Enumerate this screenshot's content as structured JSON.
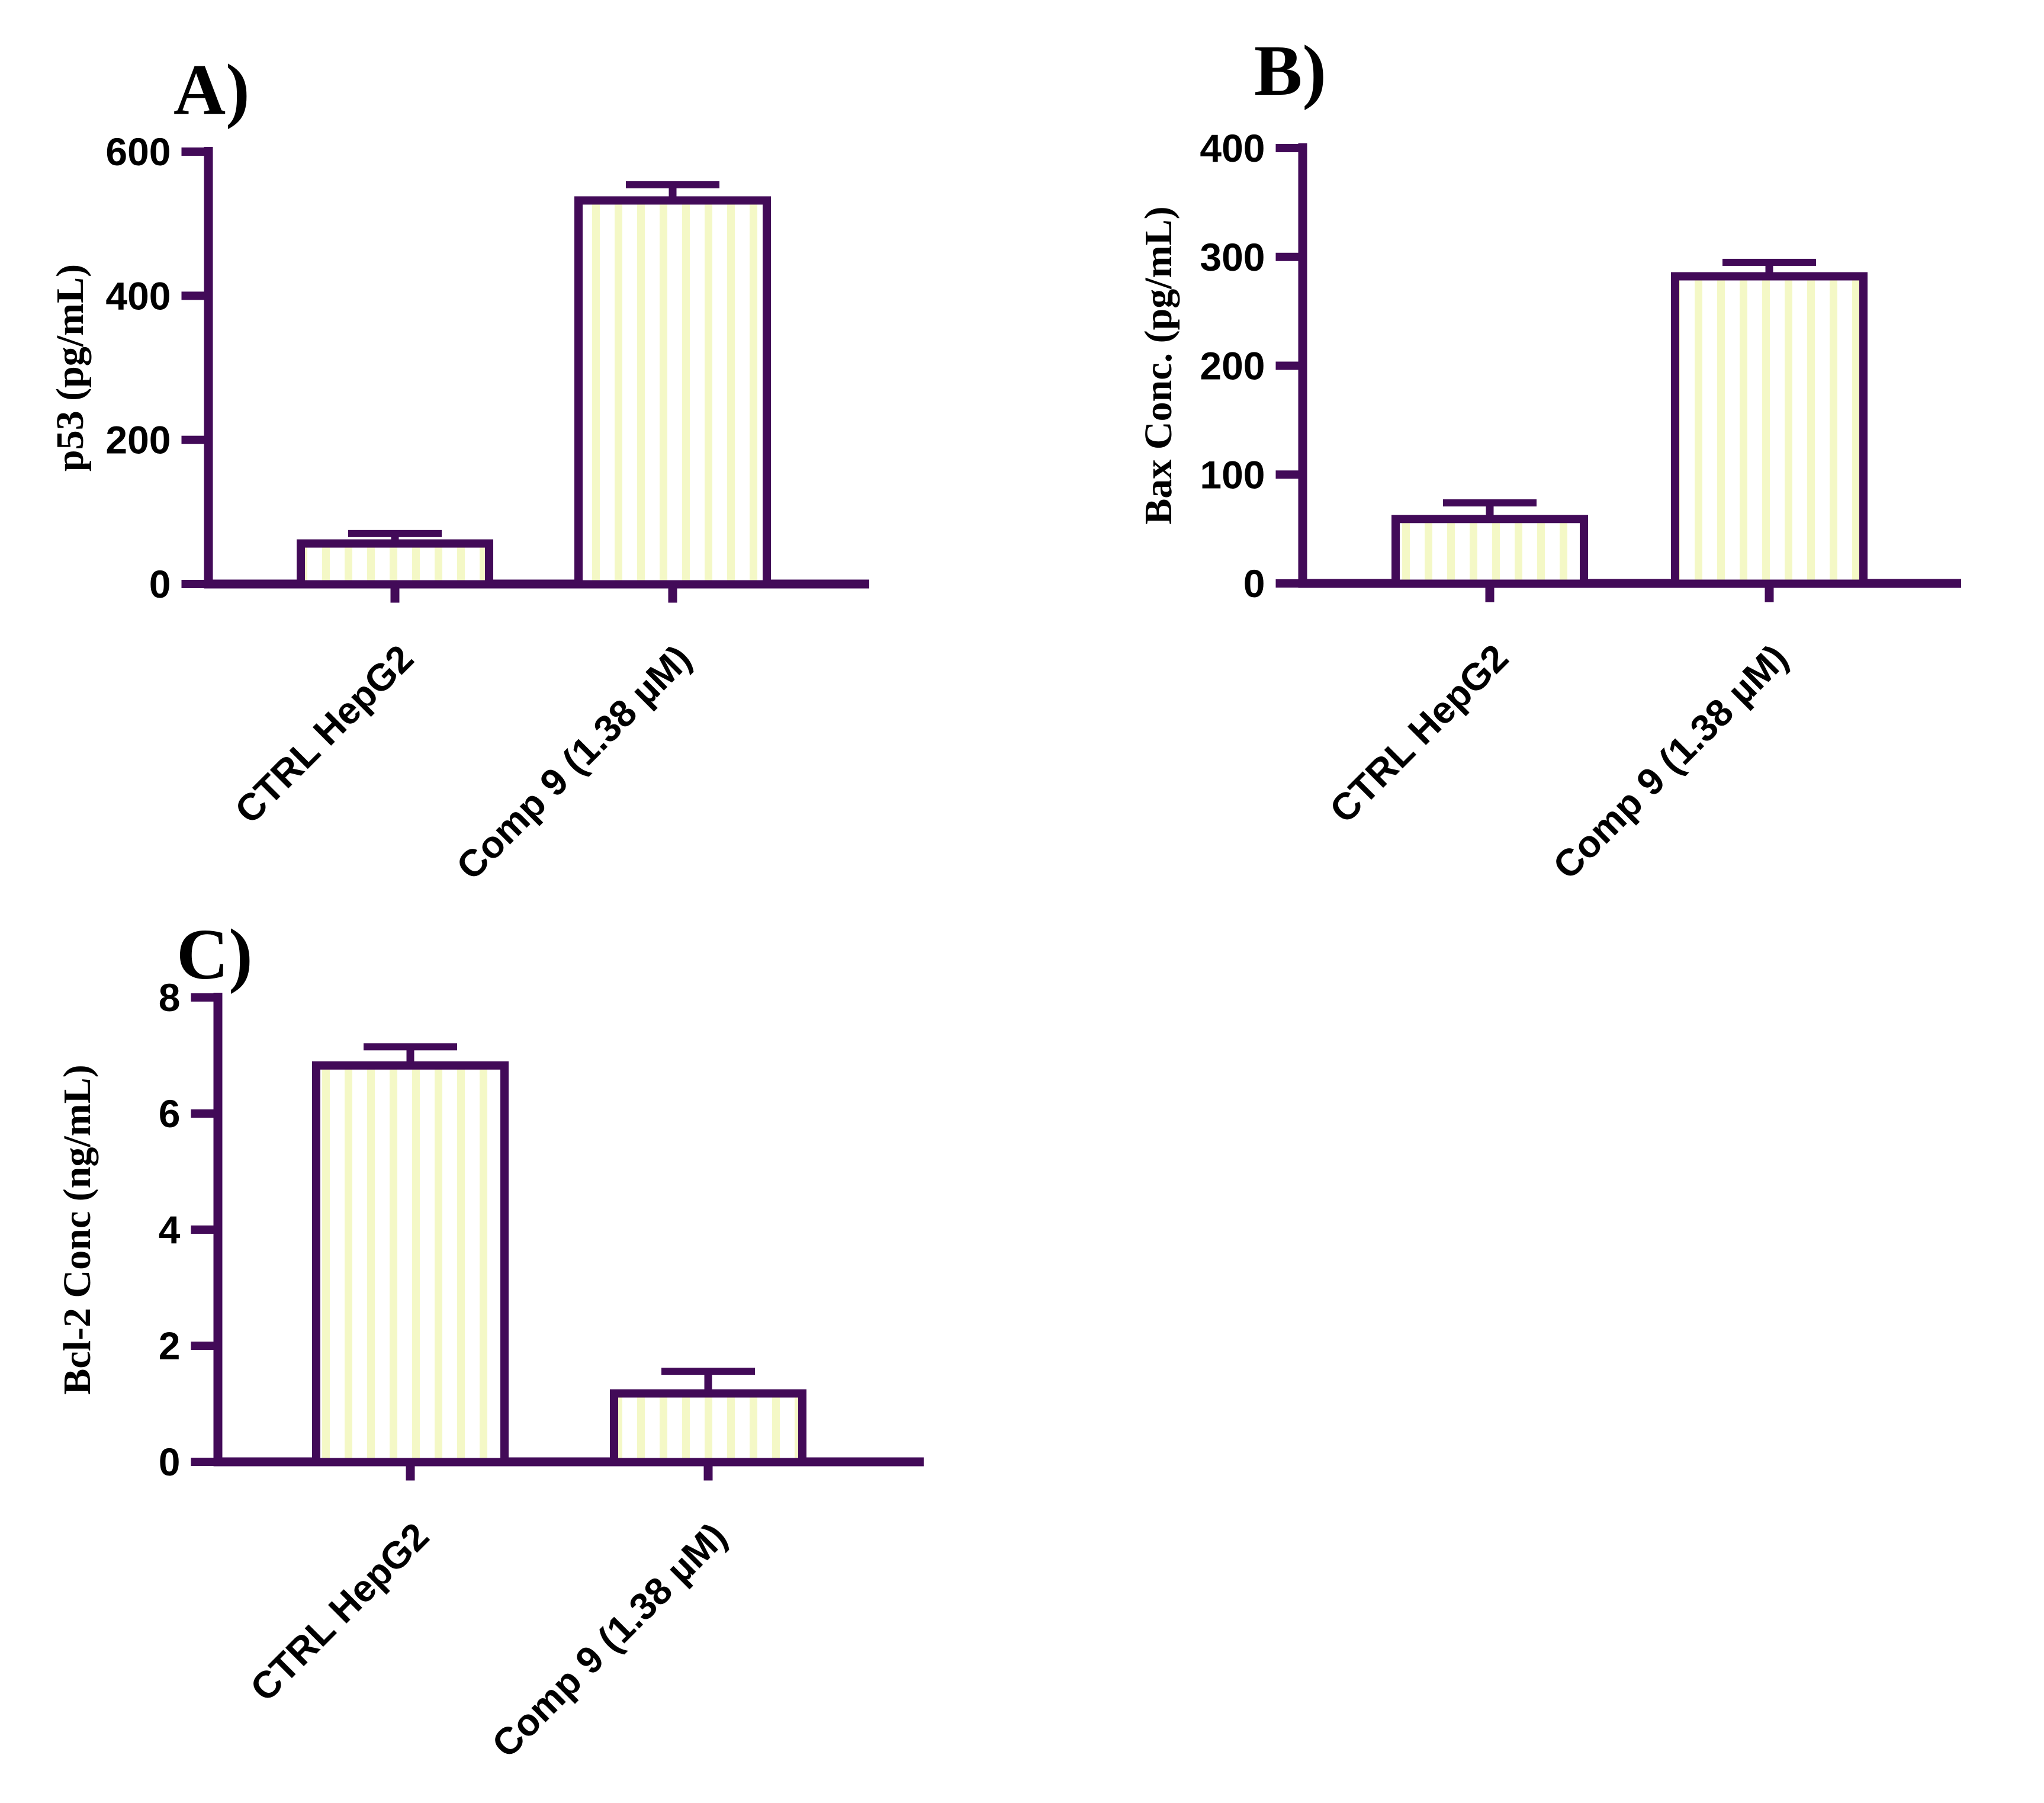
{
  "figure": {
    "background": "#ffffff",
    "description": "Three-panel bar figure (ELISA concentrations) comparing control HepG2 cells vs Compound 9 treatment"
  },
  "colors": {
    "axis": "#420A58",
    "bar_border": "#420A58",
    "error_bar": "#420A58",
    "bar_background": "#ffffff",
    "bar_stripe": "#F4F8C6",
    "text": "#000000"
  },
  "chart_data": [
    {
      "type": "bar",
      "panel_label": "A)",
      "title": "",
      "xlabel": "",
      "ylabel": "p53 (pg/mL)",
      "ylim": [
        0,
        600
      ],
      "yticks": [
        0,
        200,
        400,
        600
      ],
      "grid": false,
      "legend": null,
      "bar_fill_style": "vertical-stripes",
      "categories": [
        "CTRL HepG2",
        "Comp 9 (1.38 µM)"
      ],
      "values": [
        62,
        538
      ],
      "error_caps": [
        70,
        554
      ]
    },
    {
      "type": "bar",
      "panel_label": "B)",
      "title": "",
      "xlabel": "",
      "ylabel": "Bax Conc. (pg/mL)",
      "ylim": [
        0,
        400
      ],
      "yticks": [
        0,
        100,
        200,
        300,
        400
      ],
      "grid": false,
      "legend": null,
      "bar_fill_style": "vertical-stripes",
      "categories": [
        "CTRL HepG2",
        "Comp 9 (1.38 µM)"
      ],
      "values": [
        63,
        286
      ],
      "error_caps": [
        74,
        295
      ]
    },
    {
      "type": "bar",
      "panel_label": "C)",
      "title": "",
      "xlabel": "",
      "ylabel": "Bcl-2 Conc (ng/mL)",
      "ylim": [
        0,
        8
      ],
      "yticks": [
        0,
        2,
        4,
        6,
        8
      ],
      "grid": false,
      "legend": null,
      "bar_fill_style": "vertical-stripes",
      "categories": [
        "CTRL HepG2",
        "Comp 9 (1.38 µM)"
      ],
      "values": [
        6.9,
        1.25
      ],
      "error_caps": [
        7.15,
        1.56
      ]
    }
  ]
}
